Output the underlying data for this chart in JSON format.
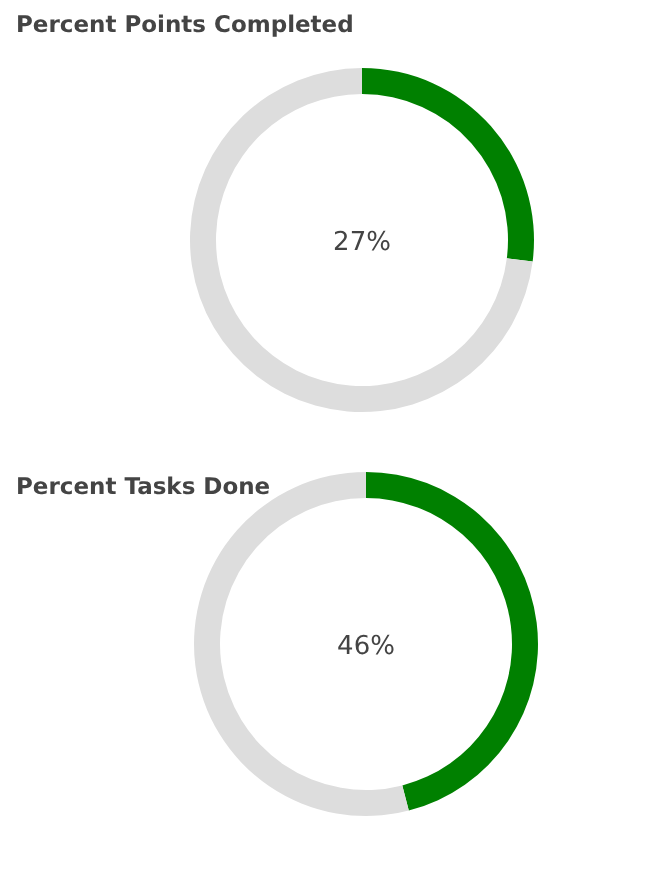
{
  "chart_data": [
    {
      "type": "donut",
      "title": "Percent Points Completed",
      "categories": [
        null,
        null
      ],
      "values": [
        27,
        73
      ],
      "colors": [
        "#008000",
        "#dddddd"
      ],
      "annotations": [
        "27%"
      ]
    },
    {
      "type": "donut",
      "title": "Percent Tasks Done",
      "categories": [
        null,
        null
      ],
      "values": [
        46,
        54
      ],
      "colors": [
        "#008000",
        "#dddddd"
      ],
      "annotations": [
        "46%"
      ]
    }
  ]
}
